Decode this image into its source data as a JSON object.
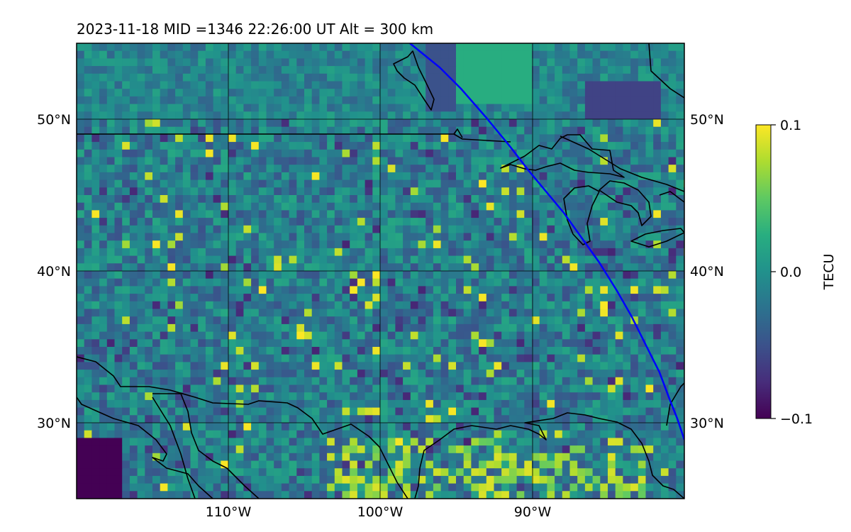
{
  "figure": {
    "title": "2023-11-18  MID =1346    22:26:00  UT  Alt = 300 km"
  },
  "map": {
    "projection": "lon-lat",
    "lon_range": [
      -120,
      -80
    ],
    "lat_range": [
      25,
      55
    ],
    "lat_ticks": [
      {
        "value": 50,
        "label": "50°N"
      },
      {
        "value": 40,
        "label": "40°N"
      },
      {
        "value": 30,
        "label": "30°N"
      }
    ],
    "lon_ticks": [
      {
        "value": -110,
        "label": "110°W"
      },
      {
        "value": -100,
        "label": "100°W"
      },
      {
        "value": -90,
        "label": "90°W"
      }
    ],
    "gridlines": true,
    "colormap": "viridis",
    "features": [
      "coastlines",
      "country borders",
      "great lakes",
      "terminator line (blue)"
    ],
    "terminator_color": "#0000ff"
  },
  "colorbar": {
    "label": "TECU",
    "min": -0.1,
    "max": 0.1,
    "ticks": [
      {
        "value": 0.1,
        "label": "0.1"
      },
      {
        "value": 0.0,
        "label": "0.0"
      },
      {
        "value": -0.1,
        "label": "−0.1"
      }
    ]
  }
}
